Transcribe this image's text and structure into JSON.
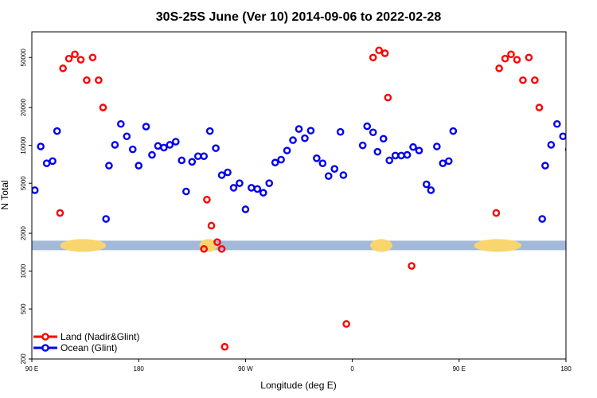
{
  "chart_data": {
    "type": "scatter",
    "title": "30S-25S June (Ver 10)   2014-09-06 to 2022-02-28",
    "xlabel": "Longitude (deg E)",
    "ylabel": "N Total",
    "y_scale": "log",
    "xlim": [
      90,
      450
    ],
    "ylim": [
      200,
      80000
    ],
    "x_ticks": [
      {
        "value": 90,
        "label": "90 E"
      },
      {
        "value": 162,
        "label": "180"
      },
      {
        "value": 234,
        "label": "90 W"
      },
      {
        "value": 306,
        "label": "0"
      },
      {
        "value": 378,
        "label": "90 E"
      },
      {
        "value": 450,
        "label": "180"
      }
    ],
    "y_ticks": [
      {
        "value": 200,
        "label": "200"
      },
      {
        "value": 500,
        "label": "500"
      },
      {
        "value": 1000,
        "label": "1000"
      },
      {
        "value": 2000,
        "label": "2000"
      },
      {
        "value": 5000,
        "label": "5000"
      },
      {
        "value": 10000,
        "label": "10000"
      },
      {
        "value": 20000,
        "label": "20000"
      },
      {
        "value": 50000,
        "label": "50000"
      }
    ],
    "band": {
      "value": 1600,
      "ocean_color": "#a3b9d8",
      "land_color": "#f9d56e",
      "land_segments": [
        [
          109,
          140
        ],
        [
          203,
          215
        ],
        [
          318,
          333
        ],
        [
          388,
          420
        ]
      ]
    },
    "legend": {
      "position": "bottom-left",
      "entries": [
        {
          "label": "Land (Nadir&Glint)",
          "color": "#ff0000"
        },
        {
          "label": "Ocean (Glint)",
          "color": "#0000ee"
        }
      ]
    },
    "series": [
      {
        "name": "Land (Nadir&Glint)",
        "color": "#ff0000",
        "points": [
          [
            109,
            2900
          ],
          [
            111,
            41000
          ],
          [
            115,
            49000
          ],
          [
            119,
            53000
          ],
          [
            123,
            48000
          ],
          [
            127,
            33000
          ],
          [
            131,
            50000
          ],
          [
            135,
            33000
          ],
          [
            138,
            20000
          ],
          [
            208,
            3700
          ],
          [
            211,
            2300
          ],
          [
            215,
            1700
          ],
          [
            218,
            1500
          ],
          [
            206,
            1500
          ],
          [
            220,
            250
          ],
          [
            302,
            380
          ],
          [
            320,
            50000
          ],
          [
            324,
            57000
          ],
          [
            328,
            54000
          ],
          [
            330,
            24000
          ],
          [
            346,
            1100
          ],
          [
            403,
            2900
          ],
          [
            405,
            41000
          ],
          [
            409,
            49000
          ],
          [
            413,
            53000
          ],
          [
            417,
            48000
          ],
          [
            421,
            33000
          ],
          [
            425,
            50000
          ],
          [
            429,
            33000
          ],
          [
            432,
            20000
          ]
        ]
      },
      {
        "name": "Ocean (Glint)",
        "color": "#0000ee",
        "points": [
          [
            92,
            4400
          ],
          [
            96,
            9800
          ],
          [
            100,
            7200
          ],
          [
            104,
            7500
          ],
          [
            107,
            13000
          ],
          [
            140,
            2600
          ],
          [
            142,
            6900
          ],
          [
            146,
            10100
          ],
          [
            150,
            14800
          ],
          [
            154,
            11800
          ],
          [
            158,
            9300
          ],
          [
            162,
            6900
          ],
          [
            167,
            14100
          ],
          [
            171,
            8400
          ],
          [
            175,
            9900
          ],
          [
            179,
            9600
          ],
          [
            183,
            10100
          ],
          [
            187,
            10700
          ],
          [
            191,
            7600
          ],
          [
            194,
            4300
          ],
          [
            198,
            7400
          ],
          [
            202,
            8200
          ],
          [
            206,
            8200
          ],
          [
            210,
            13000
          ],
          [
            214,
            9500
          ],
          [
            218,
            5800
          ],
          [
            222,
            6100
          ],
          [
            226,
            4600
          ],
          [
            230,
            5000
          ],
          [
            234,
            3100
          ],
          [
            238,
            4600
          ],
          [
            242,
            4500
          ],
          [
            246,
            4200
          ],
          [
            250,
            5000
          ],
          [
            254,
            7300
          ],
          [
            258,
            7700
          ],
          [
            262,
            9100
          ],
          [
            266,
            11000
          ],
          [
            270,
            13500
          ],
          [
            274,
            11400
          ],
          [
            278,
            13100
          ],
          [
            282,
            7900
          ],
          [
            286,
            7200
          ],
          [
            290,
            5700
          ],
          [
            294,
            6500
          ],
          [
            298,
            12800
          ],
          [
            300,
            5800
          ],
          [
            313,
            10000
          ],
          [
            316,
            14200
          ],
          [
            320,
            12700
          ],
          [
            323,
            8900
          ],
          [
            327,
            11300
          ],
          [
            331,
            7600
          ],
          [
            335,
            8300
          ],
          [
            339,
            8300
          ],
          [
            343,
            8400
          ],
          [
            347,
            9700
          ],
          [
            351,
            9100
          ],
          [
            356,
            4900
          ],
          [
            359,
            4400
          ],
          [
            363,
            9800
          ],
          [
            367,
            7200
          ],
          [
            371,
            7500
          ],
          [
            374,
            13000
          ],
          [
            434,
            2600
          ],
          [
            436,
            6900
          ],
          [
            440,
            10100
          ],
          [
            444,
            14800
          ],
          [
            448,
            11800
          ],
          [
            452,
            9300
          ]
        ]
      }
    ]
  }
}
